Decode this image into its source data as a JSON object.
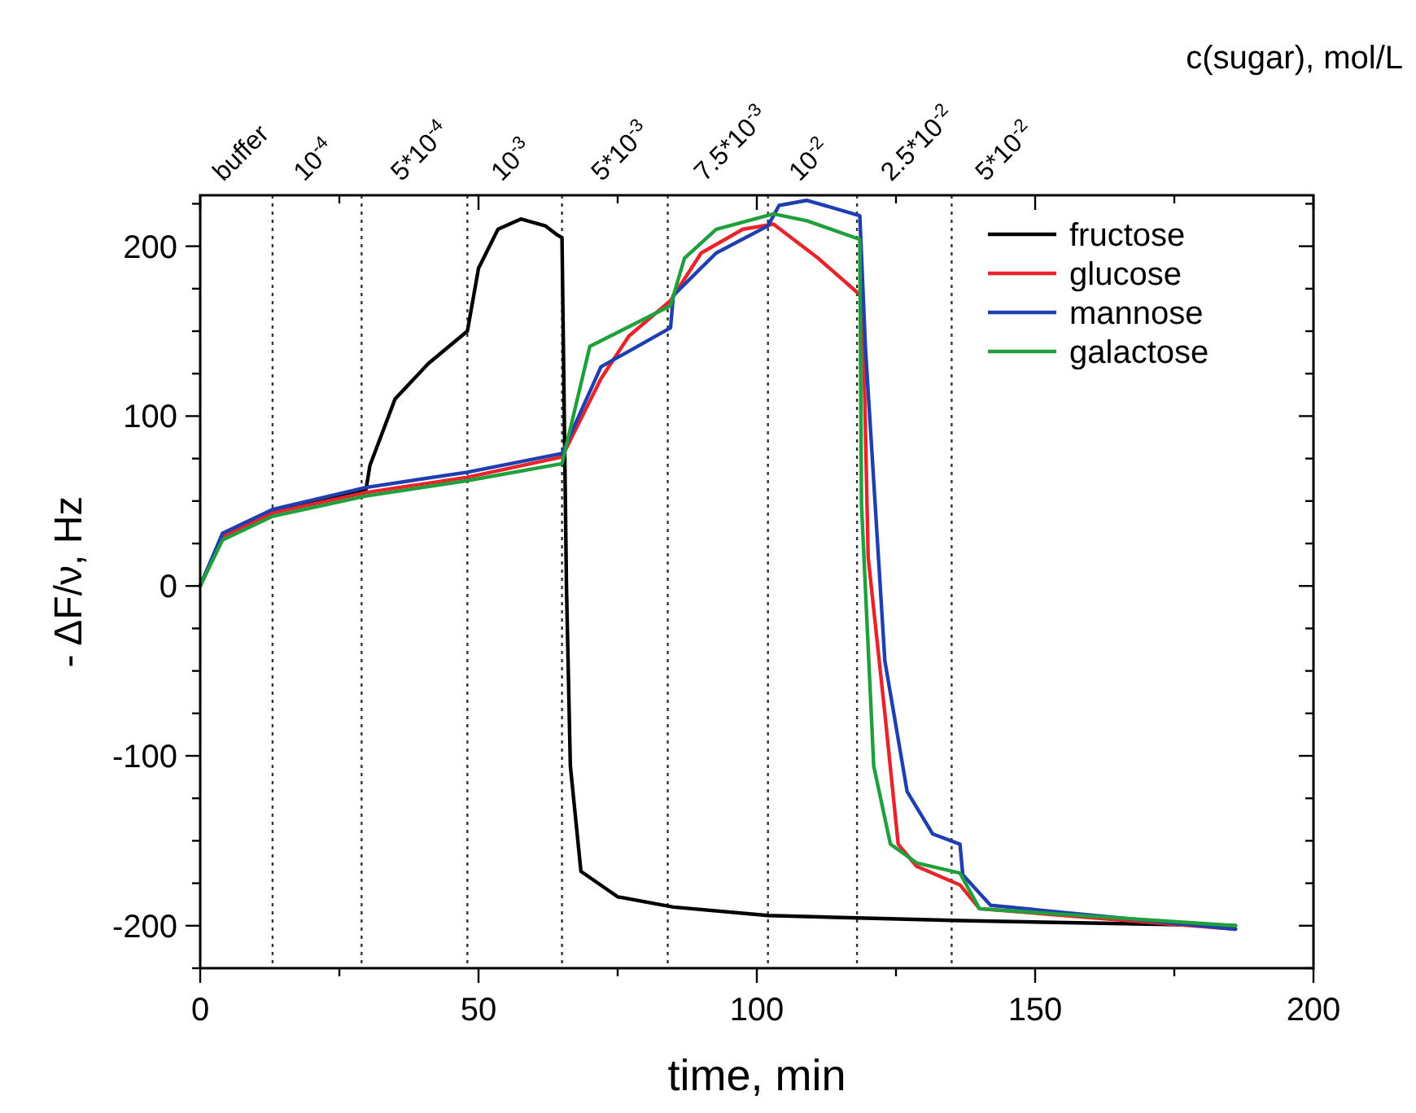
{
  "chart_data": {
    "type": "line",
    "xlabel": "time, min",
    "ylabel": "- ΔF/ν, Hz",
    "xlim": [
      0,
      200
    ],
    "ylim": [
      -225,
      230
    ],
    "xticks": [
      0,
      {
        "value": 25,
        "label": null
      },
      50,
      {
        "value": 75,
        "label": null
      },
      100,
      {
        "value": 125,
        "label": null
      },
      150,
      {
        "value": 175,
        "label": null
      },
      200
    ],
    "yticks": [
      {
        "value": -225,
        "label": null
      },
      -200,
      {
        "value": -175,
        "label": null
      },
      {
        "value": -150,
        "label": null
      },
      {
        "value": -125,
        "label": null
      },
      -100,
      {
        "value": -75,
        "label": null
      },
      {
        "value": -50,
        "label": null
      },
      {
        "value": -25,
        "label": null
      },
      0,
      {
        "value": 25,
        "label": null
      },
      {
        "value": 50,
        "label": null
      },
      {
        "value": 75,
        "label": null
      },
      100,
      {
        "value": 125,
        "label": null
      },
      {
        "value": 150,
        "label": null
      },
      {
        "value": 175,
        "label": null
      },
      200,
      {
        "value": 225,
        "label": null
      }
    ],
    "grid": false,
    "legend": "top right",
    "line_style": "solid",
    "marker": "none",
    "series": [
      {
        "name": "fructose",
        "color": "#000000",
        "x": [
          0,
          4,
          13,
          29.8,
          30.5,
          35,
          41,
          48,
          50,
          53.5,
          57.6,
          62,
          64,
          65,
          65.8,
          66.5,
          68.4,
          75,
          85,
          102,
          136.5,
          186
        ],
        "values": [
          0,
          30,
          44,
          57,
          71,
          110,
          131,
          150,
          187,
          210,
          216,
          212,
          207,
          205,
          0,
          -106,
          -168,
          -183,
          -189,
          -194,
          -197,
          -200
        ]
      },
      {
        "name": "glucose",
        "color": "#e8232a",
        "x": [
          0,
          4,
          13,
          29.8,
          48,
          65,
          72,
          77,
          84.5,
          90,
          97.5,
          103,
          111,
          119,
          120,
          123,
          125.4,
          128.7,
          136.5,
          140,
          186
        ],
        "values": [
          0,
          29,
          43,
          55,
          64,
          76,
          122,
          147,
          168,
          196,
          210,
          213,
          193,
          170,
          17,
          -75,
          -152,
          -165,
          -176,
          -190,
          -202
        ]
      },
      {
        "name": "mannose",
        "color": "#1f3fb0",
        "x": [
          0,
          4,
          13,
          29.8,
          48,
          65,
          72,
          84.5,
          85,
          92.7,
          102,
          104,
          109,
          118.5,
          119.5,
          123,
          127,
          131.6,
          136.5,
          137,
          142,
          186
        ],
        "values": [
          0,
          31,
          45,
          58,
          67,
          78,
          129,
          152,
          171,
          196,
          212,
          224,
          227,
          218,
          141,
          -44,
          -121,
          -146,
          -152,
          -170,
          -188,
          -202
        ]
      },
      {
        "name": "galactose",
        "color": "#1fa03c",
        "x": [
          0,
          4,
          13,
          29.8,
          48,
          65,
          70,
          84.5,
          87,
          92.7,
          103,
          109,
          118.5,
          118.8,
          121,
          124,
          128.7,
          136.5,
          140,
          186
        ],
        "values": [
          0,
          27,
          41,
          53,
          62,
          72,
          141,
          165,
          193,
          210,
          219,
          215,
          204,
          48,
          -106,
          -152,
          -163,
          -169,
          -190,
          -200
        ]
      }
    ],
    "ref_lines": [
      {
        "axis": "x",
        "value": 13,
        "line_style": "dotted"
      },
      {
        "axis": "x",
        "value": 29,
        "line_style": "dotted"
      },
      {
        "axis": "x",
        "value": 48,
        "line_style": "dotted"
      },
      {
        "axis": "x",
        "value": 65,
        "line_style": "dotted"
      },
      {
        "axis": "x",
        "value": 84,
        "line_style": "dotted"
      },
      {
        "axis": "x",
        "value": 102,
        "line_style": "dotted"
      },
      {
        "axis": "x",
        "value": 118,
        "line_style": "dotted"
      },
      {
        "axis": "x",
        "value": 135,
        "line_style": "dotted"
      }
    ],
    "annotations": [
      "buffer",
      "10$^{-4}$",
      "5*10$^{-4}$",
      "10$^{-3}$",
      "5*10$^{-3}$",
      "7.5*10$^{-3}$",
      "10$^{-2}$",
      "2.5*10$^{-2}$",
      "5*10$^{-2}$",
      "c(sugar), mol/L"
    ]
  }
}
